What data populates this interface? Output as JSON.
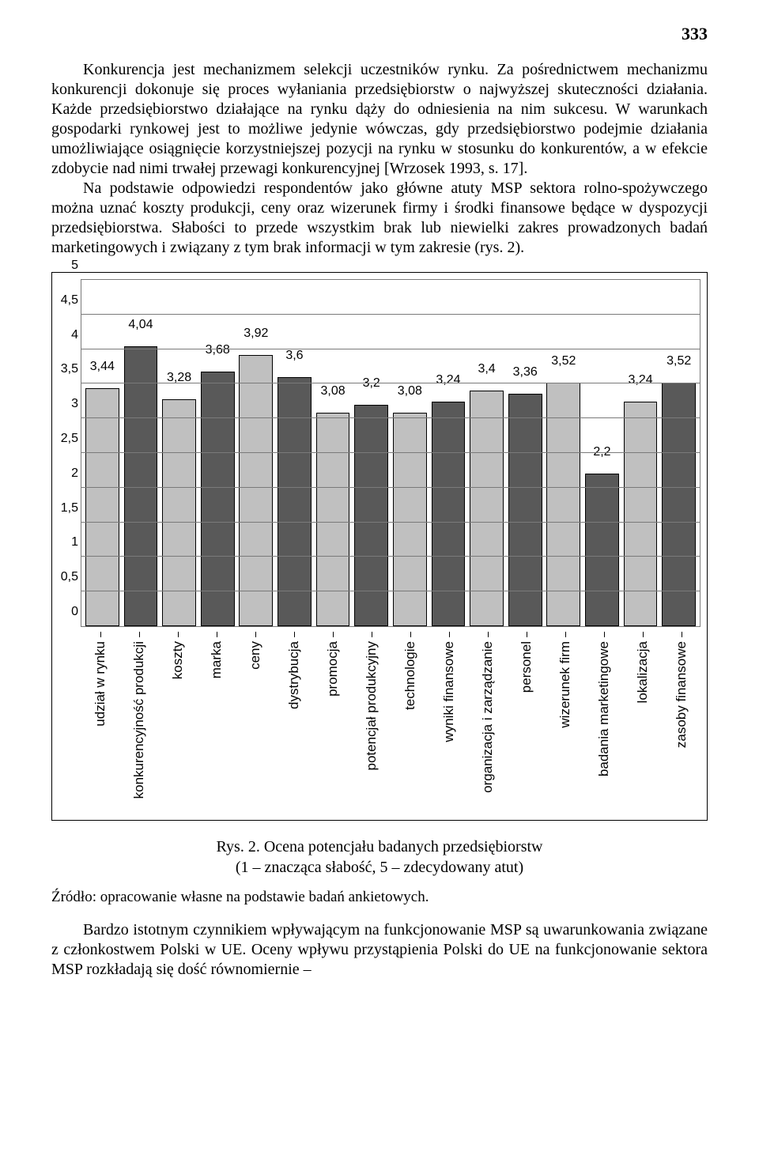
{
  "page_number": "333",
  "paragraph1": "Konkurencja jest mechanizmem selekcji uczestników rynku. Za pośrednictwem mechanizmu konkurencji dokonuje się proces wyłaniania przedsiębiorstw o najwyższej skuteczności działania. Każde przedsiębiorstwo działające na rynku dąży do odniesienia na nim sukcesu. W warunkach gospodarki rynkowej jest to możliwe jedynie wówczas, gdy przedsiębiorstwo podejmie działania umożliwiające osiągnięcie korzystniejszej pozycji na rynku w stosunku do konkurentów, a w efekcie zdobycie nad nimi trwałej przewagi konkurencyjnej [Wrzosek 1993, s. 17].",
  "paragraph2": "Na podstawie odpowiedzi respondentów jako główne atuty MSP sektora rolno-spożywczego można uznać koszty produkcji, ceny oraz wizerunek firmy i środki finansowe będące w dyspozycji przedsiębiorstwa. Słabości to przede wszystkim brak lub niewielki zakres prowadzonych badań marketingowych i związany z tym brak informacji w tym zakresie (rys. 2).",
  "chart": {
    "ylim": [
      0,
      5
    ],
    "ytick_step": 0.5,
    "yticks": [
      "0",
      "0,5",
      "1",
      "1,5",
      "2",
      "2,5",
      "3",
      "3,5",
      "4",
      "4,5",
      "5"
    ],
    "color_light": "#c0c0c0",
    "color_dark": "#595959",
    "grid_color": "#7a7a7a",
    "bars": [
      {
        "label": "udział w rynku",
        "value": 3.44,
        "text": "3,44",
        "color": "light"
      },
      {
        "label": "konkurencyjność produkcji",
        "value": 4.04,
        "text": "4,04",
        "color": "dark"
      },
      {
        "label": "koszty",
        "value": 3.28,
        "text": "3,28",
        "color": "light"
      },
      {
        "label": "marka",
        "value": 3.68,
        "text": "3,68",
        "color": "dark"
      },
      {
        "label": "ceny",
        "value": 3.92,
        "text": "3,92",
        "color": "light"
      },
      {
        "label": "dystrybucja",
        "value": 3.6,
        "text": "3,6",
        "color": "dark"
      },
      {
        "label": "promocja",
        "value": 3.08,
        "text": "3,08",
        "color": "light"
      },
      {
        "label": "potencjał produkcyjny",
        "value": 3.2,
        "text": "3,2",
        "color": "dark"
      },
      {
        "label": "technologie",
        "value": 3.08,
        "text": "3,08",
        "color": "light"
      },
      {
        "label": "wyniki finansowe",
        "value": 3.24,
        "text": "3,24",
        "color": "dark"
      },
      {
        "label": "organizacja i zarządzanie",
        "value": 3.4,
        "text": "3,4",
        "color": "light"
      },
      {
        "label": "personel",
        "value": 3.36,
        "text": "3,36",
        "color": "dark"
      },
      {
        "label": "wizerunek firm",
        "value": 3.52,
        "text": "3,52",
        "color": "light"
      },
      {
        "label": "badania marketingowe",
        "value": 2.2,
        "text": "2,2",
        "color": "dark"
      },
      {
        "label": "lokalizacja",
        "value": 3.24,
        "text": "3,24",
        "color": "light"
      },
      {
        "label": "zasoby finansowe",
        "value": 3.52,
        "text": "3,52",
        "color": "dark"
      }
    ]
  },
  "caption_line1": "Rys. 2. Ocena potencjału badanych przedsiębiorstw",
  "caption_line2": "(1 – znacząca słabość, 5 – zdecydowany atut)",
  "source": "Źródło: opracowanie własne na podstawie badań ankietowych.",
  "paragraph3": "Bardzo istotnym czynnikiem wpływającym na funkcjonowanie MSP są uwarunkowania związane z członkostwem Polski w UE. Oceny wpływu przystąpienia Polski do UE na funkcjonowanie sektora MSP rozkładają się dość równomiernie –"
}
